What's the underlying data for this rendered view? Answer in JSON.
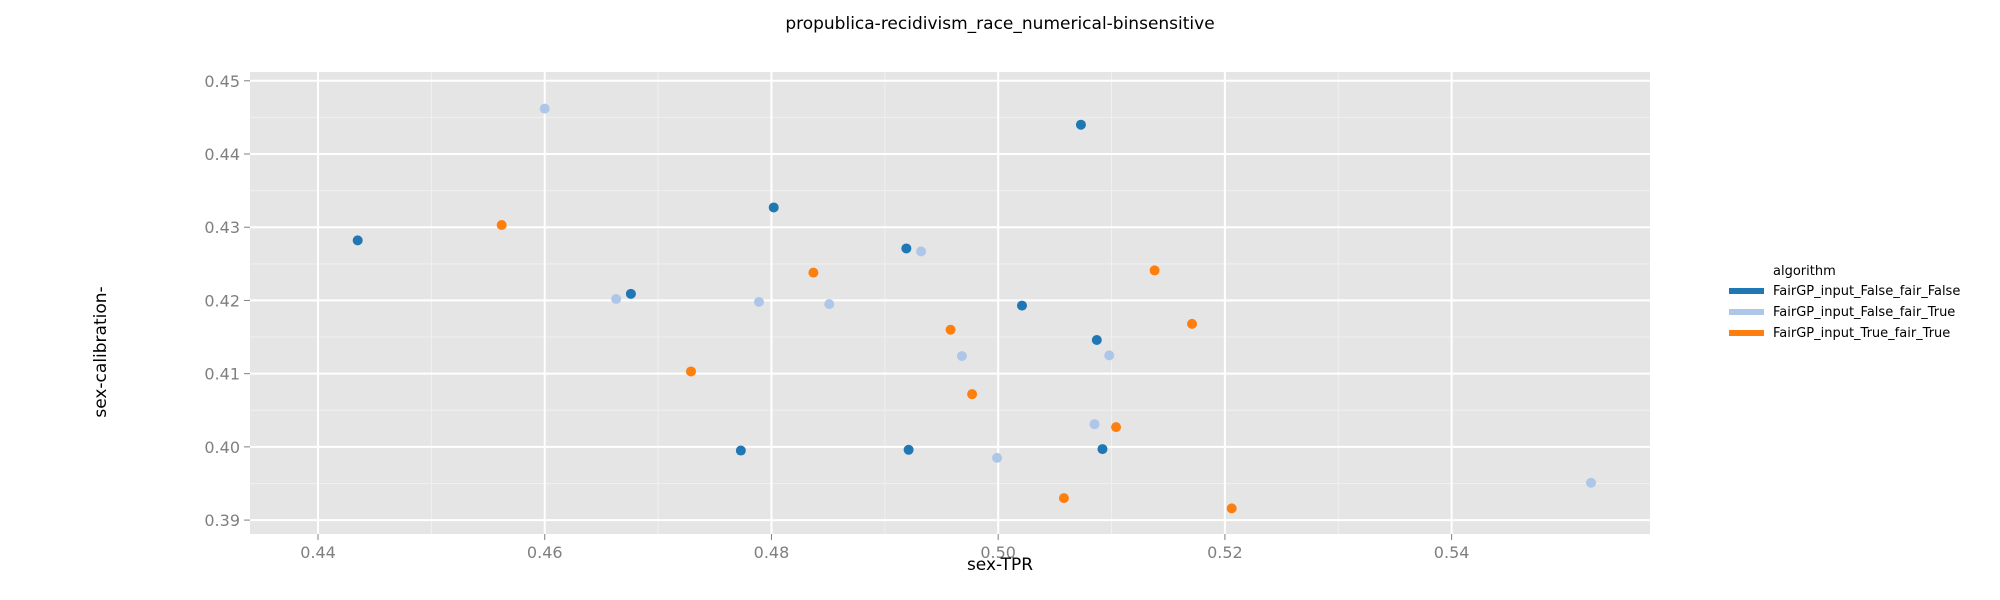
{
  "chart_data": {
    "type": "scatter",
    "title": "propublica-recidivism_race_numerical-binsensitive",
    "xlabel": "sex-TPR",
    "ylabel": "sex-calibration-",
    "xlim": [
      0.434,
      0.5575
    ],
    "ylim": [
      0.3881,
      0.4512
    ],
    "x_ticks": [
      "0.44",
      "0.46",
      "0.48",
      "0.50",
      "0.52",
      "0.54"
    ],
    "y_ticks": [
      "0.39",
      "0.40",
      "0.41",
      "0.42",
      "0.43",
      "0.44",
      "0.45"
    ],
    "grid": true,
    "legend": {
      "title": "algorithm",
      "placement": "right"
    },
    "series": [
      {
        "name": "FairGP_input_False_fair_False",
        "color": "#1f77b4",
        "points": [
          [
            0.4435,
            0.4282
          ],
          [
            0.4676,
            0.4209
          ],
          [
            0.4802,
            0.4327
          ],
          [
            0.4773,
            0.3995
          ],
          [
            0.4919,
            0.4271
          ],
          [
            0.4921,
            0.3996
          ],
          [
            0.5021,
            0.4193
          ],
          [
            0.5073,
            0.444
          ],
          [
            0.5087,
            0.4146
          ],
          [
            0.5092,
            0.3997
          ]
        ]
      },
      {
        "name": "FairGP_input_False_fair_True",
        "color": "#aec7e8",
        "points": [
          [
            0.46,
            0.4462
          ],
          [
            0.4663,
            0.4202
          ],
          [
            0.4789,
            0.4198
          ],
          [
            0.4851,
            0.4195
          ],
          [
            0.4932,
            0.4267
          ],
          [
            0.4968,
            0.4124
          ],
          [
            0.4999,
            0.3985
          ],
          [
            0.5085,
            0.4031
          ],
          [
            0.5098,
            0.4125
          ],
          [
            0.5523,
            0.3951
          ]
        ]
      },
      {
        "name": "FairGP_input_True_fair_True",
        "color": "#ff7f0e",
        "points": [
          [
            0.4562,
            0.4303
          ],
          [
            0.4729,
            0.4103
          ],
          [
            0.4837,
            0.4238
          ],
          [
            0.4958,
            0.416
          ],
          [
            0.4977,
            0.4072
          ],
          [
            0.5058,
            0.393
          ],
          [
            0.5104,
            0.4027
          ],
          [
            0.5138,
            0.4241
          ],
          [
            0.5171,
            0.4168
          ],
          [
            0.5206,
            0.3916
          ]
        ]
      }
    ]
  }
}
